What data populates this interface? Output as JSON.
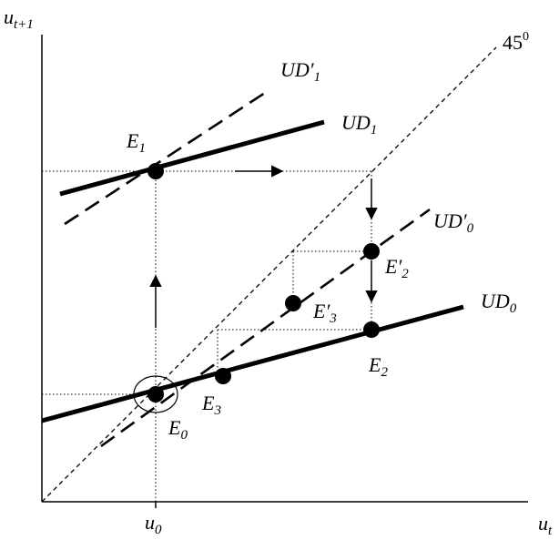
{
  "axes": {
    "y_label": "u",
    "y_label_sub": "t+1",
    "x_label": "u",
    "x_label_sub": "t",
    "x_tick": "u",
    "x_tick_sub": "0"
  },
  "lines": {
    "diagonal": {
      "label": "45",
      "label_sup": "0"
    },
    "ud1": {
      "label": "UD",
      "label_sub": "1"
    },
    "ud1_prime": {
      "label": "UD′",
      "label_sub": "1"
    },
    "ud0": {
      "label": "UD",
      "label_sub": "0"
    },
    "ud0_prime": {
      "label": "UD′",
      "label_sub": "0"
    }
  },
  "points": {
    "e0": {
      "label": "E",
      "sub": "0"
    },
    "e1": {
      "label": "E",
      "sub": "1"
    },
    "e2": {
      "label": "E",
      "sub": "2"
    },
    "e2_prime": {
      "label": "E′",
      "sub": "2"
    },
    "e3": {
      "label": "E",
      "sub": "3"
    },
    "e3_prime": {
      "label": "E′",
      "sub": "3"
    }
  }
}
